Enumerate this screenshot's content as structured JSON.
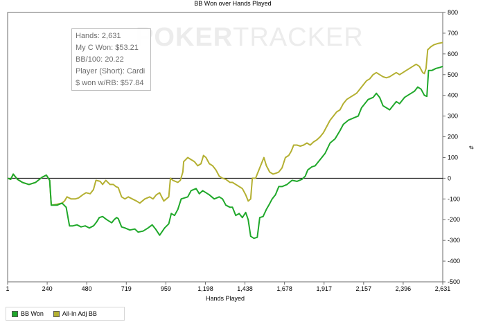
{
  "watermark": {
    "part1": "POKER",
    "part2": "TRACKER"
  },
  "info": {
    "hands": "Hands: 2,631",
    "my_c_won": "My C Won: $53.21",
    "bb100": "BB/100: 20.22",
    "player": "Player (Short): Cardi",
    "won_rb": "$ won w/RB: $57.84"
  },
  "legend": [
    {
      "label": "BB Won",
      "color": "#1fa82a"
    },
    {
      "label": "All-In Adj BB",
      "color": "#b4b032"
    }
  ],
  "chart_data": {
    "type": "line",
    "title": "BB Won over Hands Played",
    "xlabel": "Hands Played",
    "ylabel": "#",
    "xlim": [
      1,
      2631
    ],
    "ylim": [
      -500,
      800
    ],
    "x_ticks": [
      "1",
      "240",
      "480",
      "719",
      "959",
      "1,198",
      "1,438",
      "1,678",
      "1,917",
      "2,157",
      "2,396",
      "2,631"
    ],
    "y_ticks": [
      800,
      700,
      600,
      500,
      400,
      300,
      200,
      100,
      0,
      -100,
      -200,
      -300,
      -400,
      -500
    ],
    "grid": false,
    "legend_position": "bottom-left",
    "series": [
      {
        "name": "BB Won",
        "color": "#1fa82a",
        "points": [
          [
            1,
            0
          ],
          [
            20,
            -5
          ],
          [
            35,
            20
          ],
          [
            60,
            -5
          ],
          [
            90,
            -20
          ],
          [
            130,
            -30
          ],
          [
            170,
            -20
          ],
          [
            210,
            5
          ],
          [
            235,
            15
          ],
          [
            255,
            -10
          ],
          [
            265,
            -130
          ],
          [
            300,
            -130
          ],
          [
            330,
            -120
          ],
          [
            355,
            -140
          ],
          [
            375,
            -230
          ],
          [
            395,
            -230
          ],
          [
            420,
            -225
          ],
          [
            445,
            -235
          ],
          [
            470,
            -230
          ],
          [
            495,
            -240
          ],
          [
            520,
            -230
          ],
          [
            540,
            -210
          ],
          [
            555,
            -190
          ],
          [
            575,
            -185
          ],
          [
            600,
            -200
          ],
          [
            630,
            -215
          ],
          [
            645,
            -200
          ],
          [
            660,
            -190
          ],
          [
            670,
            -195
          ],
          [
            690,
            -235
          ],
          [
            710,
            -240
          ],
          [
            740,
            -250
          ],
          [
            770,
            -245
          ],
          [
            790,
            -260
          ],
          [
            820,
            -255
          ],
          [
            850,
            -240
          ],
          [
            875,
            -225
          ],
          [
            895,
            -245
          ],
          [
            920,
            -275
          ],
          [
            950,
            -240
          ],
          [
            975,
            -220
          ],
          [
            990,
            -170
          ],
          [
            1010,
            -180
          ],
          [
            1030,
            -150
          ],
          [
            1050,
            -100
          ],
          [
            1070,
            -95
          ],
          [
            1090,
            -90
          ],
          [
            1110,
            -60
          ],
          [
            1140,
            -50
          ],
          [
            1160,
            -75
          ],
          [
            1180,
            -60
          ],
          [
            1200,
            -70
          ],
          [
            1220,
            -80
          ],
          [
            1250,
            -100
          ],
          [
            1280,
            -90
          ],
          [
            1300,
            -100
          ],
          [
            1320,
            -130
          ],
          [
            1345,
            -140
          ],
          [
            1360,
            -140
          ],
          [
            1380,
            -180
          ],
          [
            1400,
            -170
          ],
          [
            1420,
            -190
          ],
          [
            1440,
            -165
          ],
          [
            1455,
            -200
          ],
          [
            1470,
            -280
          ],
          [
            1490,
            -290
          ],
          [
            1510,
            -285
          ],
          [
            1525,
            -190
          ],
          [
            1545,
            -185
          ],
          [
            1565,
            -150
          ],
          [
            1580,
            -130
          ],
          [
            1600,
            -100
          ],
          [
            1620,
            -80
          ],
          [
            1640,
            -40
          ],
          [
            1660,
            -40
          ],
          [
            1690,
            -30
          ],
          [
            1720,
            -10
          ],
          [
            1750,
            -15
          ],
          [
            1780,
            -5
          ],
          [
            1800,
            10
          ],
          [
            1815,
            40
          ],
          [
            1840,
            55
          ],
          [
            1860,
            60
          ],
          [
            1880,
            80
          ],
          [
            1900,
            100
          ],
          [
            1920,
            120
          ],
          [
            1950,
            170
          ],
          [
            1980,
            190
          ],
          [
            2010,
            230
          ],
          [
            2030,
            260
          ],
          [
            2060,
            280
          ],
          [
            2090,
            290
          ],
          [
            2120,
            300
          ],
          [
            2140,
            340
          ],
          [
            2160,
            360
          ],
          [
            2180,
            380
          ],
          [
            2210,
            390
          ],
          [
            2230,
            410
          ],
          [
            2250,
            390
          ],
          [
            2270,
            350
          ],
          [
            2290,
            340
          ],
          [
            2310,
            330
          ],
          [
            2330,
            350
          ],
          [
            2350,
            370
          ],
          [
            2370,
            360
          ],
          [
            2400,
            390
          ],
          [
            2420,
            400
          ],
          [
            2440,
            410
          ],
          [
            2460,
            420
          ],
          [
            2480,
            440
          ],
          [
            2500,
            430
          ],
          [
            2520,
            400
          ],
          [
            2535,
            395
          ],
          [
            2545,
            520
          ],
          [
            2565,
            520
          ],
          [
            2590,
            530
          ],
          [
            2615,
            535
          ],
          [
            2631,
            540
          ]
        ]
      },
      {
        "name": "All-In Adj BB",
        "color": "#b4b032",
        "points": [
          [
            1,
            0
          ],
          [
            20,
            -5
          ],
          [
            35,
            20
          ],
          [
            60,
            -5
          ],
          [
            90,
            -20
          ],
          [
            130,
            -30
          ],
          [
            170,
            -20
          ],
          [
            210,
            5
          ],
          [
            235,
            15
          ],
          [
            255,
            -10
          ],
          [
            265,
            -130
          ],
          [
            300,
            -125
          ],
          [
            330,
            -120
          ],
          [
            345,
            -110
          ],
          [
            360,
            -90
          ],
          [
            385,
            -100
          ],
          [
            410,
            -100
          ],
          [
            430,
            -95
          ],
          [
            455,
            -80
          ],
          [
            475,
            -70
          ],
          [
            500,
            -75
          ],
          [
            520,
            -55
          ],
          [
            535,
            -10
          ],
          [
            560,
            -15
          ],
          [
            575,
            -30
          ],
          [
            595,
            -10
          ],
          [
            620,
            -30
          ],
          [
            640,
            -30
          ],
          [
            655,
            -40
          ],
          [
            670,
            -45
          ],
          [
            690,
            -90
          ],
          [
            710,
            -100
          ],
          [
            730,
            -90
          ],
          [
            755,
            -100
          ],
          [
            780,
            -110
          ],
          [
            800,
            -120
          ],
          [
            830,
            -100
          ],
          [
            860,
            -90
          ],
          [
            880,
            -100
          ],
          [
            900,
            -80
          ],
          [
            920,
            -70
          ],
          [
            945,
            -110
          ],
          [
            975,
            -90
          ],
          [
            985,
            0
          ],
          [
            1000,
            -10
          ],
          [
            1030,
            -20
          ],
          [
            1045,
            -10
          ],
          [
            1060,
            30
          ],
          [
            1065,
            80
          ],
          [
            1090,
            100
          ],
          [
            1110,
            90
          ],
          [
            1130,
            80
          ],
          [
            1150,
            60
          ],
          [
            1170,
            70
          ],
          [
            1185,
            110
          ],
          [
            1200,
            100
          ],
          [
            1220,
            70
          ],
          [
            1240,
            60
          ],
          [
            1260,
            40
          ],
          [
            1280,
            10
          ],
          [
            1300,
            0
          ],
          [
            1320,
            -5
          ],
          [
            1345,
            -20
          ],
          [
            1360,
            -20
          ],
          [
            1380,
            -30
          ],
          [
            1400,
            -40
          ],
          [
            1420,
            -50
          ],
          [
            1440,
            -80
          ],
          [
            1455,
            -110
          ],
          [
            1470,
            -100
          ],
          [
            1480,
            0
          ],
          [
            1500,
            0
          ],
          [
            1520,
            40
          ],
          [
            1540,
            80
          ],
          [
            1550,
            100
          ],
          [
            1565,
            60
          ],
          [
            1585,
            30
          ],
          [
            1605,
            20
          ],
          [
            1625,
            25
          ],
          [
            1640,
            30
          ],
          [
            1660,
            50
          ],
          [
            1680,
            100
          ],
          [
            1700,
            110
          ],
          [
            1715,
            130
          ],
          [
            1730,
            160
          ],
          [
            1750,
            160
          ],
          [
            1770,
            155
          ],
          [
            1790,
            160
          ],
          [
            1810,
            170
          ],
          [
            1830,
            160
          ],
          [
            1850,
            175
          ],
          [
            1870,
            185
          ],
          [
            1890,
            200
          ],
          [
            1910,
            220
          ],
          [
            1930,
            250
          ],
          [
            1950,
            280
          ],
          [
            1970,
            300
          ],
          [
            1990,
            320
          ],
          [
            2010,
            330
          ],
          [
            2030,
            360
          ],
          [
            2050,
            380
          ],
          [
            2070,
            390
          ],
          [
            2090,
            400
          ],
          [
            2110,
            410
          ],
          [
            2130,
            430
          ],
          [
            2150,
            450
          ],
          [
            2170,
            470
          ],
          [
            2190,
            480
          ],
          [
            2210,
            500
          ],
          [
            2230,
            510
          ],
          [
            2250,
            500
          ],
          [
            2270,
            490
          ],
          [
            2290,
            485
          ],
          [
            2310,
            490
          ],
          [
            2330,
            500
          ],
          [
            2350,
            510
          ],
          [
            2370,
            500
          ],
          [
            2390,
            510
          ],
          [
            2410,
            520
          ],
          [
            2430,
            530
          ],
          [
            2450,
            540
          ],
          [
            2470,
            550
          ],
          [
            2490,
            540
          ],
          [
            2510,
            510
          ],
          [
            2520,
            505
          ],
          [
            2530,
            530
          ],
          [
            2540,
            620
          ],
          [
            2560,
            635
          ],
          [
            2580,
            645
          ],
          [
            2600,
            650
          ],
          [
            2631,
            655
          ]
        ]
      }
    ]
  }
}
